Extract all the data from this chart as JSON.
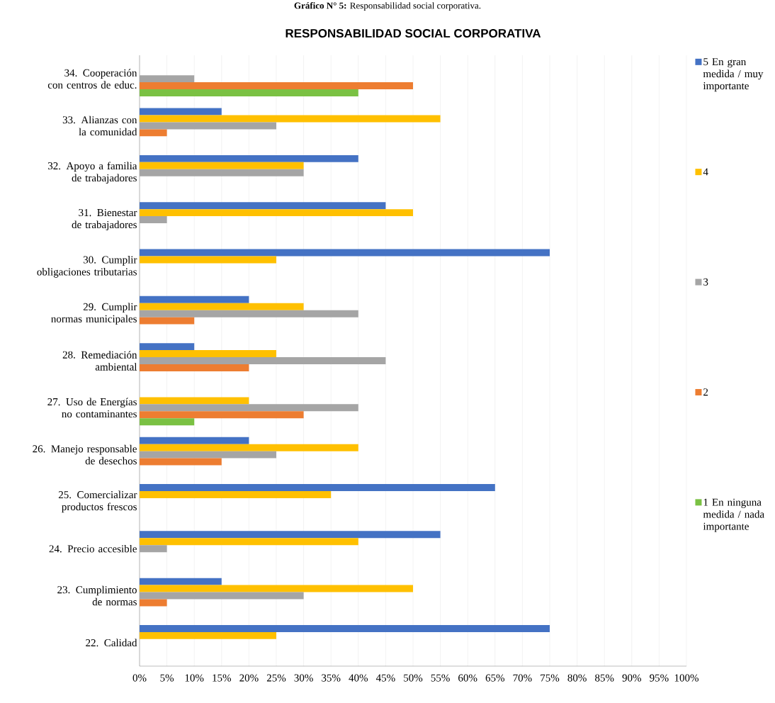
{
  "chart_data": {
    "type": "bar",
    "orientation": "horizontal",
    "title": "RESPONSABILIDAD SOCIAL CORPORATIVA",
    "annotations": [
      "**Gráfico N° 5:** Responsabilidad social corporativa."
    ],
    "categories": [
      "34. Cooperación con centros de educ.",
      "33. Alianzas con la comunidad",
      "32. Apoyo a familia de trabajadores",
      "31. Bienestar de trabajadores",
      "30. Cumplir obligaciones tributarias",
      "29. Cumplir normas municipales",
      "28. Remediación ambiental",
      "27. Uso de Energías no contaminantes",
      "26. Manejo responsable de desechos",
      "25. Comercializar productos frescos",
      "24. Precio accesible",
      "23. Cumplimiento de normas",
      "22. Calidad"
    ],
    "series": [
      {
        "name": "5 En gran medida / muy importante",
        "color": "#4472c4",
        "values": [
          0,
          15,
          40,
          45,
          75,
          20,
          10,
          0,
          20,
          65,
          55,
          15,
          75
        ]
      },
      {
        "name": "4",
        "color": "#ffc000",
        "values": [
          0,
          55,
          30,
          50,
          25,
          30,
          25,
          20,
          40,
          35,
          40,
          50,
          25
        ]
      },
      {
        "name": "3",
        "color": "#a5a5a5",
        "values": [
          10,
          25,
          30,
          5,
          0,
          40,
          45,
          40,
          25,
          0,
          5,
          30,
          0
        ]
      },
      {
        "name": "2",
        "color": "#ed7d31",
        "values": [
          50,
          5,
          0,
          0,
          0,
          10,
          20,
          30,
          15,
          0,
          0,
          5,
          0
        ]
      },
      {
        "name": "1 En ninguna medida / nada importante",
        "color": "#7ac143",
        "values": [
          40,
          0,
          0,
          0,
          0,
          0,
          0,
          10,
          0,
          0,
          0,
          0,
          0
        ]
      }
    ],
    "xlim": [
      0,
      100
    ],
    "xticks": [
      {
        "value": 0,
        "label": "0%"
      },
      {
        "value": 5,
        "label": "5%"
      },
      {
        "value": 10,
        "label": "10%"
      },
      {
        "value": 15,
        "label": "15%"
      },
      {
        "value": 20,
        "label": "20%"
      },
      {
        "value": 25,
        "label": "25%"
      },
      {
        "value": 30,
        "label": "30%"
      },
      {
        "value": 35,
        "label": "35%"
      },
      {
        "value": 40,
        "label": "40%"
      },
      {
        "value": 45,
        "label": "45%"
      },
      {
        "value": 50,
        "label": "50%"
      },
      {
        "value": 55,
        "label": "55%"
      },
      {
        "value": 60,
        "label": "60%"
      },
      {
        "value": 65,
        "label": "65%"
      },
      {
        "value": 70,
        "label": "70%"
      },
      {
        "value": 75,
        "label": "75%"
      },
      {
        "value": 80,
        "label": "80%"
      },
      {
        "value": 85,
        "label": "85%"
      },
      {
        "value": 90,
        "label": "90%"
      },
      {
        "value": 95,
        "label": "95%"
      },
      {
        "value": 100,
        "label": "100%"
      }
    ],
    "grid": "x",
    "legend": "right"
  }
}
